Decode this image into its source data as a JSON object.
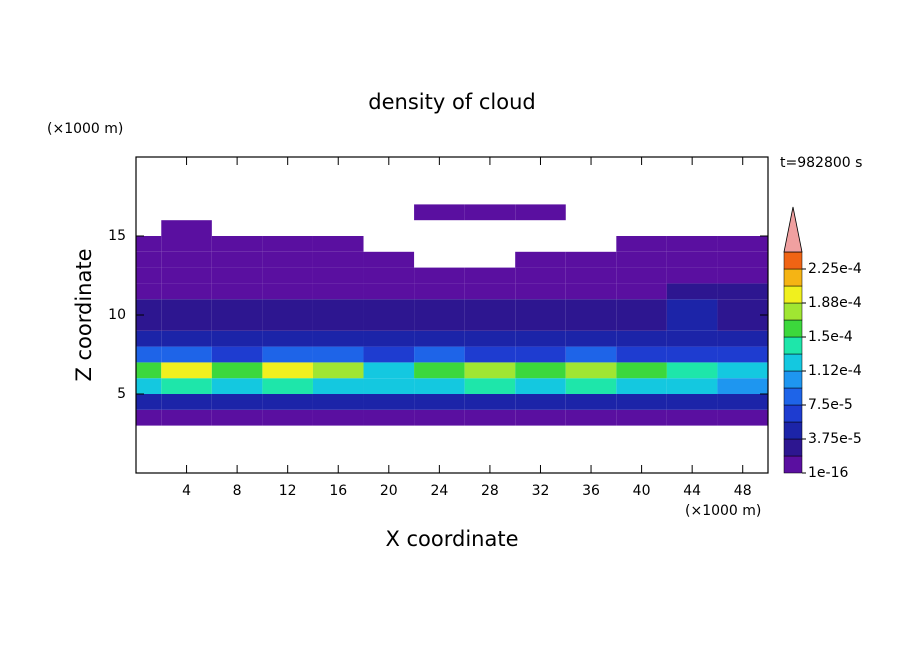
{
  "chart_data": {
    "type": "contour",
    "title": "density of cloud",
    "x_label": "X coordinate",
    "y_label": "Z coordinate",
    "x_unit": "(×1000 m)",
    "y_unit": "(×1000 m)",
    "time_label": "t=982800 s",
    "xlim": [
      0,
      50
    ],
    "xticks": [
      4,
      8,
      12,
      16,
      20,
      24,
      28,
      32,
      36,
      40,
      44,
      48
    ],
    "ylim": [
      0,
      20
    ],
    "yticks": [
      5,
      10,
      15
    ],
    "x": [
      0,
      4,
      8,
      12,
      16,
      20,
      24,
      28,
      32,
      36,
      40,
      44,
      48
    ],
    "z": [
      3.5,
      4.5,
      5.5,
      6.5,
      7.5,
      8.5,
      9.5,
      10.5,
      11.5,
      12.5,
      13.5,
      14.5,
      15.5,
      16.5
    ],
    "values": [
      [
        1e-05,
        1e-05,
        1e-05,
        1e-05,
        1e-05,
        1e-05,
        1e-05,
        1e-05,
        1e-05,
        1e-05,
        1e-05,
        1e-05,
        1e-05
      ],
      [
        4e-05,
        4e-05,
        4e-05,
        4e-05,
        4e-05,
        4e-05,
        4e-05,
        4e-05,
        4e-05,
        4e-05,
        4e-05,
        4e-05,
        4e-05
      ],
      [
        0.00012,
        0.00014,
        0.00013,
        0.00014,
        0.00013,
        0.00012,
        0.00013,
        0.00014,
        0.00012,
        0.00014,
        0.00013,
        0.00012,
        0.00011
      ],
      [
        0.00016,
        0.00019,
        0.00016,
        0.00019,
        0.00017,
        0.00013,
        0.00015,
        0.00017,
        0.00016,
        0.00018,
        0.00015,
        0.00014,
        0.00013
      ],
      [
        8e-05,
        9e-05,
        7e-05,
        9e-05,
        8e-05,
        7e-05,
        8e-05,
        7e-05,
        7e-05,
        8e-05,
        7e-05,
        7e-05,
        6e-05
      ],
      [
        4e-05,
        4e-05,
        4e-05,
        4e-05,
        5e-05,
        4e-05,
        4e-05,
        4e-05,
        4e-05,
        4e-05,
        4e-05,
        5e-05,
        4e-05
      ],
      [
        3e-05,
        3e-05,
        3e-05,
        3e-05,
        3e-05,
        3e-05,
        3e-05,
        3e-05,
        2e-05,
        3e-05,
        3e-05,
        4e-05,
        3e-05
      ],
      [
        2e-05,
        2e-05,
        2e-05,
        2e-05,
        2e-05,
        2e-05,
        2e-05,
        2e-05,
        2e-05,
        2e-05,
        2e-05,
        4e-05,
        3e-05
      ],
      [
        1e-05,
        1e-05,
        1e-05,
        1e-05,
        1e-05,
        1e-05,
        1e-05,
        1e-05,
        1e-05,
        1e-05,
        1e-05,
        2e-05,
        2e-05
      ],
      [
        1e-05,
        1e-05,
        1e-05,
        1e-05,
        1e-05,
        1e-05,
        1e-05,
        1e-05,
        1e-05,
        1e-05,
        1e-05,
        1e-05,
        1e-05
      ],
      [
        1e-05,
        1e-05,
        1e-05,
        1e-05,
        1e-05,
        1e-05,
        null,
        null,
        1e-05,
        1e-05,
        1e-05,
        1e-05,
        1e-05
      ],
      [
        1e-05,
        1e-05,
        1e-05,
        1e-05,
        1e-05,
        null,
        null,
        null,
        null,
        null,
        1e-05,
        1e-05,
        1e-05
      ],
      [
        null,
        1e-05,
        null,
        null,
        null,
        null,
        null,
        null,
        null,
        null,
        null,
        null,
        null
      ],
      [
        null,
        null,
        null,
        null,
        null,
        null,
        1e-05,
        1e-05,
        1e-05,
        null,
        null,
        null,
        null
      ]
    ],
    "levels": [
      1e-16,
      1.875e-05,
      3.75e-05,
      5.625e-05,
      7.5e-05,
      9.375e-05,
      0.0001125,
      0.00013125,
      0.00015,
      0.00016875,
      0.0001875,
      0.00020625,
      0.000225,
      0.00024375
    ],
    "colors": [
      "#5a0fa0",
      "#2d1690",
      "#1c24a8",
      "#1e3cd0",
      "#1e64e8",
      "#1e96f0",
      "#14c8e0",
      "#1ee6aa",
      "#3cd83c",
      "#a0e632",
      "#f0f01e",
      "#f5b414",
      "#f06414"
    ],
    "extend_color": "#f0a0a0",
    "colorbar_ticks": [
      {
        "value": 1e-16,
        "label": "1e-16"
      },
      {
        "value": 3.75e-05,
        "label": "3.75e-5"
      },
      {
        "value": 7.5e-05,
        "label": "7.5e-5"
      },
      {
        "value": 0.0001125,
        "label": "1.12e-4"
      },
      {
        "value": 0.00015,
        "label": "1.5e-4"
      },
      {
        "value": 0.0001875,
        "label": "1.88e-4"
      },
      {
        "value": 0.000225,
        "label": "2.25e-4"
      }
    ]
  }
}
